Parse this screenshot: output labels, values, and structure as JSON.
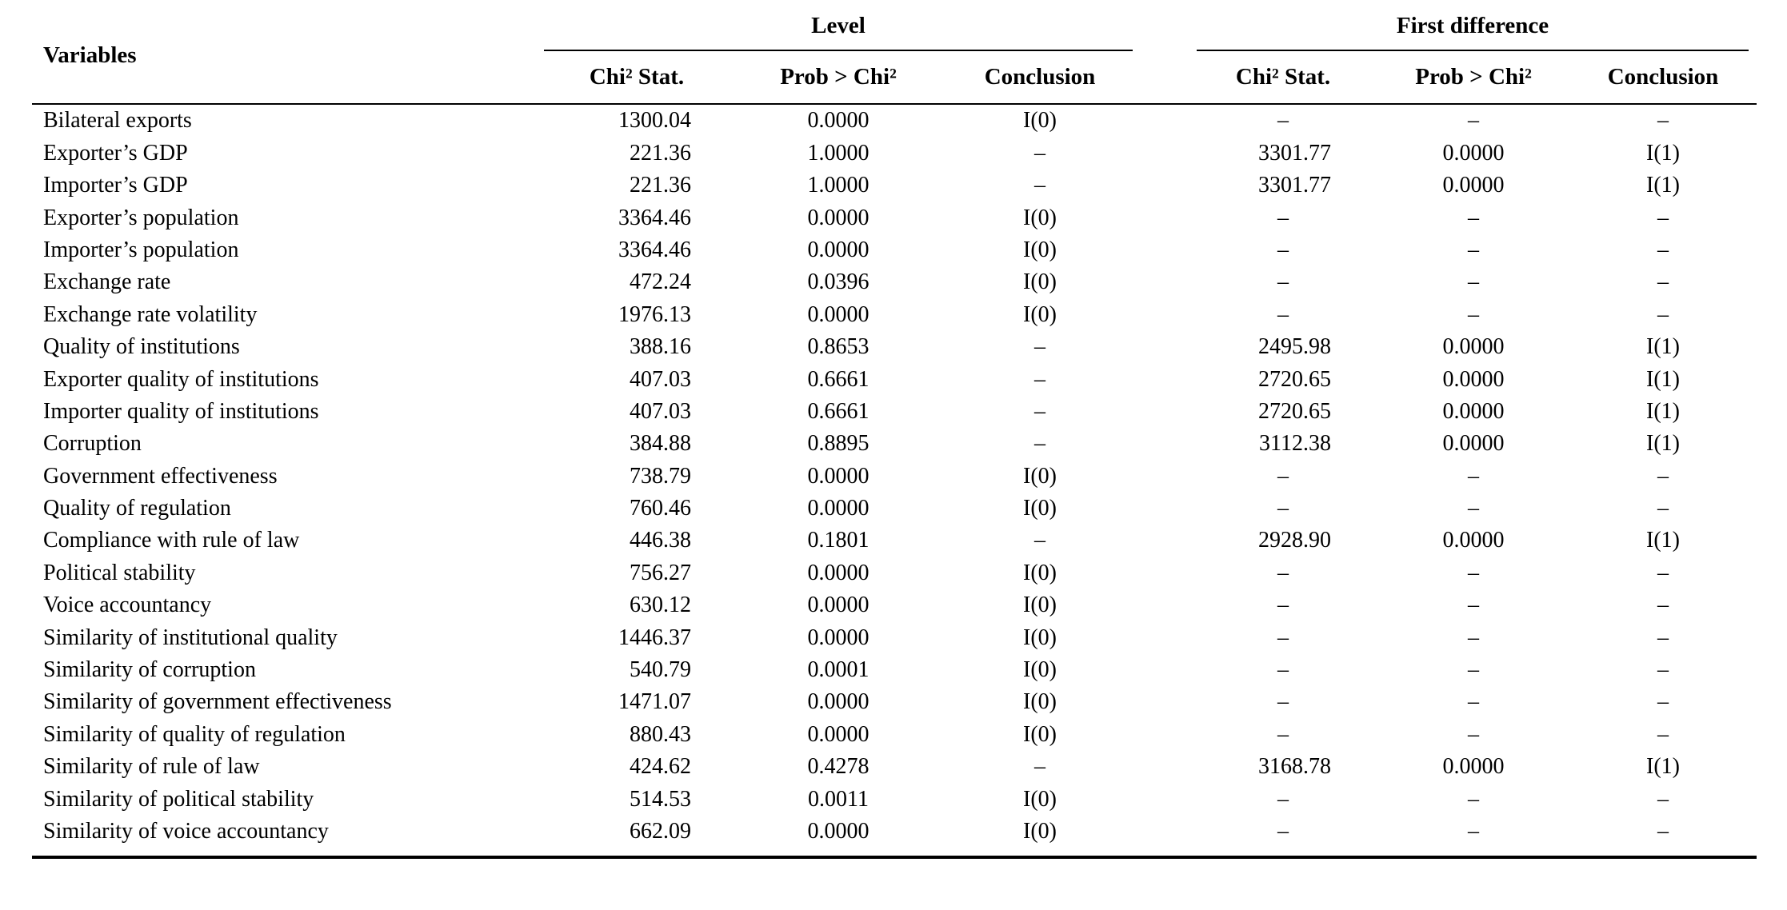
{
  "table": {
    "variables_header": "Variables",
    "dash": "–",
    "groups": [
      {
        "label": "Level",
        "sub_headers": [
          "Chi² Stat.",
          "Prob > Chi²",
          "Conclusion"
        ]
      },
      {
        "label": "First difference",
        "sub_headers": [
          "Chi² Stat.",
          "Prob > Chi²",
          "Conclusion"
        ]
      }
    ],
    "rows": [
      {
        "variable": "Bilateral exports",
        "level": [
          "1300.04",
          "0.0000",
          "I(0)"
        ],
        "first_difference": [
          "–",
          "–",
          "–"
        ]
      },
      {
        "variable": "Exporter’s GDP",
        "level": [
          "221.36",
          "1.0000",
          "–"
        ],
        "first_difference": [
          "3301.77",
          "0.0000",
          "I(1)"
        ]
      },
      {
        "variable": "Importer’s GDP",
        "level": [
          "221.36",
          "1.0000",
          "–"
        ],
        "first_difference": [
          "3301.77",
          "0.0000",
          "I(1)"
        ]
      },
      {
        "variable": "Exporter’s population",
        "level": [
          "3364.46",
          "0.0000",
          "I(0)"
        ],
        "first_difference": [
          "–",
          "–",
          "–"
        ]
      },
      {
        "variable": "Importer’s population",
        "level": [
          "3364.46",
          "0.0000",
          "I(0)"
        ],
        "first_difference": [
          "–",
          "–",
          "–"
        ]
      },
      {
        "variable": "Exchange rate",
        "level": [
          "472.24",
          "0.0396",
          "I(0)"
        ],
        "first_difference": [
          "–",
          "–",
          "–"
        ]
      },
      {
        "variable": "Exchange rate volatility",
        "level": [
          "1976.13",
          "0.0000",
          "I(0)"
        ],
        "first_difference": [
          "–",
          "–",
          "–"
        ]
      },
      {
        "variable": "Quality of institutions",
        "level": [
          "388.16",
          "0.8653",
          "–"
        ],
        "first_difference": [
          "2495.98",
          "0.0000",
          "I(1)"
        ]
      },
      {
        "variable": "Exporter quality of institutions",
        "level": [
          "407.03",
          "0.6661",
          "–"
        ],
        "first_difference": [
          "2720.65",
          "0.0000",
          "I(1)"
        ]
      },
      {
        "variable": "Importer quality of institutions",
        "level": [
          "407.03",
          "0.6661",
          "–"
        ],
        "first_difference": [
          "2720.65",
          "0.0000",
          "I(1)"
        ]
      },
      {
        "variable": "Corruption",
        "level": [
          "384.88",
          "0.8895",
          "–"
        ],
        "first_difference": [
          "3112.38",
          "0.0000",
          "I(1)"
        ]
      },
      {
        "variable": "Government effectiveness",
        "level": [
          "738.79",
          "0.0000",
          "I(0)"
        ],
        "first_difference": [
          "–",
          "–",
          "–"
        ]
      },
      {
        "variable": "Quality of regulation",
        "level": [
          "760.46",
          "0.0000",
          "I(0)"
        ],
        "first_difference": [
          "–",
          "–",
          "–"
        ]
      },
      {
        "variable": "Compliance with rule of law",
        "level": [
          "446.38",
          "0.1801",
          "–"
        ],
        "first_difference": [
          "2928.90",
          "0.0000",
          "I(1)"
        ]
      },
      {
        "variable": "Political stability",
        "level": [
          "756.27",
          "0.0000",
          "I(0)"
        ],
        "first_difference": [
          "–",
          "–",
          "–"
        ]
      },
      {
        "variable": "Voice accountancy",
        "level": [
          "630.12",
          "0.0000",
          "I(0)"
        ],
        "first_difference": [
          "–",
          "–",
          "–"
        ]
      },
      {
        "variable": "Similarity of institutional quality",
        "level": [
          "1446.37",
          "0.0000",
          "I(0)"
        ],
        "first_difference": [
          "–",
          "–",
          "–"
        ]
      },
      {
        "variable": "Similarity of corruption",
        "level": [
          "540.79",
          "0.0001",
          "I(0)"
        ],
        "first_difference": [
          "–",
          "–",
          "–"
        ]
      },
      {
        "variable": "Similarity of government effectiveness",
        "level": [
          "1471.07",
          "0.0000",
          "I(0)"
        ],
        "first_difference": [
          "–",
          "–",
          "–"
        ]
      },
      {
        "variable": "Similarity of quality of regulation",
        "level": [
          "880.43",
          "0.0000",
          "I(0)"
        ],
        "first_difference": [
          "–",
          "–",
          "–"
        ]
      },
      {
        "variable": "Similarity of rule of law",
        "level": [
          "424.62",
          "0.4278",
          "–"
        ],
        "first_difference": [
          "3168.78",
          "0.0000",
          "I(1)"
        ]
      },
      {
        "variable": "Similarity of political stability",
        "level": [
          "514.53",
          "0.0011",
          "I(0)"
        ],
        "first_difference": [
          "–",
          "–",
          "–"
        ]
      },
      {
        "variable": "Similarity of voice accountancy",
        "level": [
          "662.09",
          "0.0000",
          "I(0)"
        ],
        "first_difference": [
          "–",
          "–",
          "–"
        ]
      }
    ]
  }
}
